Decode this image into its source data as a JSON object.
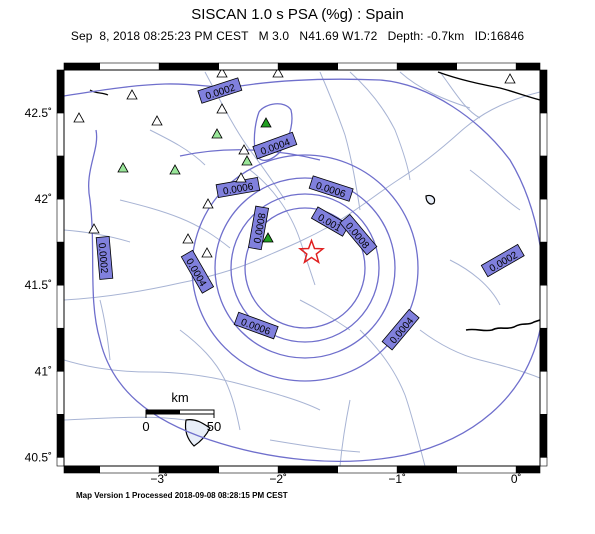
{
  "header": {
    "title": "SISCAN 1.0 s PSA (%g) : Spain",
    "subtitle": "Sep  8, 2018 08:25:23 PM CEST   M 3.0   N41.69 W1.72   Depth: -0.7km   ID:16846"
  },
  "footer": {
    "text": "Map Version 1 Processed 2018-09-08 08:28:15 PM CEST"
  },
  "map": {
    "lon_range": [
      -3.8,
      0.2
    ],
    "lat_range": [
      40.45,
      42.75
    ],
    "x_ticks": [
      {
        "value": -3,
        "label": "−3˚"
      },
      {
        "value": -2,
        "label": "−2˚"
      },
      {
        "value": -1,
        "label": "−1˚"
      },
      {
        "value": 0,
        "label": "0˚"
      }
    ],
    "y_ticks": [
      {
        "value": 42.5,
        "label": "42.5˚"
      },
      {
        "value": 42,
        "label": "42˚"
      },
      {
        "value": 41.5,
        "label": "41.5˚"
      },
      {
        "value": 41,
        "label": "41˚"
      },
      {
        "value": 40.5,
        "label": "40.5˚"
      }
    ],
    "epicenter": {
      "lon": -1.72,
      "lat": 41.69,
      "marker": "star-icon"
    },
    "contour_color": "#6f6fcc",
    "label_fill": "#8080dd",
    "contour_labels": [
      {
        "text": "0.0002"
      },
      {
        "text": "0.0004"
      },
      {
        "text": "0.0006"
      },
      {
        "text": "0.0008"
      },
      {
        "text": "0.001"
      },
      {
        "text": "0.0008"
      },
      {
        "text": "0.0006"
      },
      {
        "text": "0.0004"
      },
      {
        "text": "0.0004"
      },
      {
        "text": "0.0006"
      },
      {
        "text": "0.0002"
      },
      {
        "text": "0.0002"
      }
    ],
    "stations": [
      {
        "type": "triangle",
        "color": "white"
      },
      {
        "type": "triangle",
        "color": "white"
      },
      {
        "type": "triangle",
        "color": "white"
      },
      {
        "type": "triangle",
        "color": "white"
      },
      {
        "type": "triangle",
        "color": "white"
      },
      {
        "type": "triangle",
        "color": "white"
      },
      {
        "type": "triangle",
        "color": "white"
      },
      {
        "type": "triangle",
        "color": "white"
      },
      {
        "type": "triangle",
        "color": "white"
      },
      {
        "type": "triangle",
        "color": "white"
      },
      {
        "type": "triangle",
        "color": "white"
      },
      {
        "type": "triangle",
        "color": "white"
      },
      {
        "type": "triangle",
        "color": "white"
      },
      {
        "type": "triangle",
        "color": "lightgreen"
      },
      {
        "type": "triangle",
        "color": "lightgreen"
      },
      {
        "type": "triangle",
        "color": "lightgreen"
      },
      {
        "type": "triangle",
        "color": "lightgreen"
      },
      {
        "type": "triangle",
        "color": "green"
      },
      {
        "type": "triangle",
        "color": "green"
      }
    ],
    "scale_bar": {
      "unit": "km",
      "start_label": "0",
      "end_label": "50"
    }
  }
}
